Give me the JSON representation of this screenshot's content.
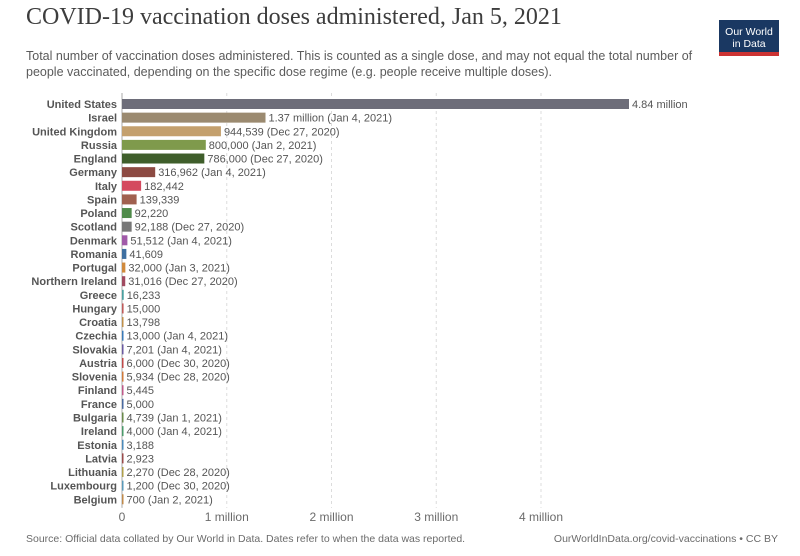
{
  "header": {
    "title": "COVID-19 vaccination doses administered, Jan 5, 2021",
    "subtitle": "Total number of vaccination doses administered. This is counted as a single dose, and may not equal the total number of people vaccinated, depending on the specific dose regime (e.g. people receive multiple doses).",
    "logo_line1": "Our World",
    "logo_line2": "in Data"
  },
  "footer": {
    "source": "Source: Official data collated by Our World in Data. Dates refer to when the data was reported.",
    "credit": "OurWorldInData.org/covid-vaccinations • CC BY"
  },
  "colors": {
    "gridline": "#dcdcdc",
    "label": "#555555"
  },
  "chart_data": {
    "type": "bar",
    "orientation": "horizontal",
    "title": "COVID-19 vaccination doses administered, Jan 5, 2021",
    "subtitle": "Total number of vaccination doses administered. This is counted as a single dose, and may not equal the total number of people vaccinated, depending on the specific dose regime (e.g. people receive multiple doses).",
    "xlim": [
      0,
      4840000
    ],
    "grid": "vertical dashed",
    "x_ticks": [
      {
        "value": 0,
        "label": "0"
      },
      {
        "value": 1000000,
        "label": "1 million"
      },
      {
        "value": 2000000,
        "label": "2 million"
      },
      {
        "value": 3000000,
        "label": "3 million"
      },
      {
        "value": 4000000,
        "label": "4 million"
      }
    ],
    "bars": [
      {
        "category": "United States",
        "value": 4840000,
        "label": "4.84 million",
        "color": "#6d6d79"
      },
      {
        "category": "Israel",
        "value": 1370000,
        "label": "1.37 million (Jan 4, 2021)",
        "color": "#9b8a70"
      },
      {
        "category": "United Kingdom",
        "value": 944539,
        "label": "944,539 (Dec 27, 2020)",
        "color": "#c4a06d"
      },
      {
        "category": "Russia",
        "value": 800000,
        "label": "800,000 (Jan 2, 2021)",
        "color": "#7f9a4c"
      },
      {
        "category": "England",
        "value": 786000,
        "label": "786,000 (Dec 27, 2020)",
        "color": "#3f5e2b"
      },
      {
        "category": "Germany",
        "value": 316962,
        "label": "316,962 (Jan 4, 2021)",
        "color": "#8c4a42"
      },
      {
        "category": "Italy",
        "value": 182442,
        "label": "182,442",
        "color": "#d44a5f"
      },
      {
        "category": "Spain",
        "value": 139339,
        "label": "139,339",
        "color": "#a0604f"
      },
      {
        "category": "Poland",
        "value": 92220,
        "label": "92,220",
        "color": "#4f8a4a"
      },
      {
        "category": "Scotland",
        "value": 92188,
        "label": "92,188 (Dec 27, 2020)",
        "color": "#777777"
      },
      {
        "category": "Denmark",
        "value": 51512,
        "label": "51,512 (Jan 4, 2021)",
        "color": "#a05aa8"
      },
      {
        "category": "Romania",
        "value": 41609,
        "label": "41,609",
        "color": "#3f6fa0"
      },
      {
        "category": "Portugal",
        "value": 32000,
        "label": "32,000 (Jan 3, 2021)",
        "color": "#d08a3c"
      },
      {
        "category": "Northern Ireland",
        "value": 31016,
        "label": "31,016 (Dec 27, 2020)",
        "color": "#a04a60"
      },
      {
        "category": "Greece",
        "value": 16233,
        "label": "16,233",
        "color": "#4aa0a0"
      },
      {
        "category": "Hungary",
        "value": 15000,
        "label": "15,000",
        "color": "#c05a5a"
      },
      {
        "category": "Croatia",
        "value": 13798,
        "label": "13,798",
        "color": "#c0904a"
      },
      {
        "category": "Czechia",
        "value": 13000,
        "label": "13,000 (Jan 4, 2021)",
        "color": "#3a7ab8"
      },
      {
        "category": "Slovakia",
        "value": 7201,
        "label": "7,201 (Jan 4, 2021)",
        "color": "#6a5aa0"
      },
      {
        "category": "Austria",
        "value": 6000,
        "label": "6,000 (Dec 30, 2020)",
        "color": "#c04a4a"
      },
      {
        "category": "Slovenia",
        "value": 5934,
        "label": "5,934 (Dec 28, 2020)",
        "color": "#d07a3a"
      },
      {
        "category": "Finland",
        "value": 5445,
        "label": "5,445",
        "color": "#c05a8a"
      },
      {
        "category": "France",
        "value": 5000,
        "label": "5,000",
        "color": "#4a6aa0"
      },
      {
        "category": "Bulgaria",
        "value": 4739,
        "label": "4,739 (Jan 1, 2021)",
        "color": "#6a8a4a"
      },
      {
        "category": "Ireland",
        "value": 4000,
        "label": "4,000 (Jan 4, 2021)",
        "color": "#4a9a6a"
      },
      {
        "category": "Estonia",
        "value": 3188,
        "label": "3,188",
        "color": "#4a8aba"
      },
      {
        "category": "Latvia",
        "value": 2923,
        "label": "2,923",
        "color": "#9a4a4a"
      },
      {
        "category": "Lithuania",
        "value": 2270,
        "label": "2,270 (Dec 28, 2020)",
        "color": "#b0a04a"
      },
      {
        "category": "Luxembourg",
        "value": 1200,
        "label": "1,200 (Dec 30, 2020)",
        "color": "#5a9aba"
      },
      {
        "category": "Belgium",
        "value": 700,
        "label": "700 (Jan 2, 2021)",
        "color": "#c08a4a"
      }
    ]
  }
}
